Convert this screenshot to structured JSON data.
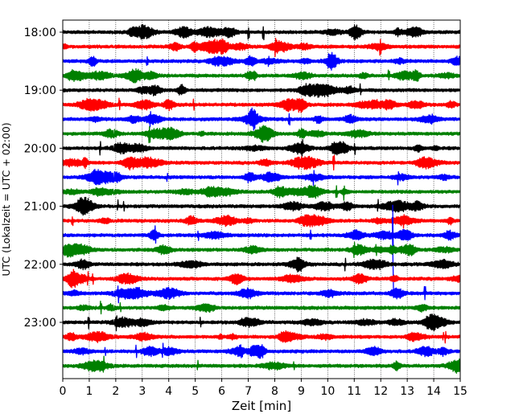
{
  "chart_data": {
    "type": "line",
    "title": "",
    "xlabel": "Zeit  [min]",
    "ylabel": "UTC (Lokalzeit = UTC + 02:00)",
    "xlim": [
      0,
      15
    ],
    "x_ticks": [
      "0",
      "1",
      "2",
      "3",
      "4",
      "5",
      "6",
      "7",
      "8",
      "9",
      "10",
      "11",
      "12",
      "13",
      "14",
      "15"
    ],
    "y_tick_labels": [
      "18:00",
      "19:00",
      "20:00",
      "21:00",
      "22:00",
      "23:00"
    ],
    "grid_x": true,
    "trace_colors": [
      "#000000",
      "#ff0000",
      "#0000ff",
      "#008000"
    ],
    "traces": [
      {
        "start": "18:00"
      },
      {
        "start": "18:15"
      },
      {
        "start": "18:30"
      },
      {
        "start": "18:45"
      },
      {
        "start": "19:00"
      },
      {
        "start": "19:15"
      },
      {
        "start": "19:30"
      },
      {
        "start": "19:45"
      },
      {
        "start": "20:00"
      },
      {
        "start": "20:15"
      },
      {
        "start": "20:30"
      },
      {
        "start": "20:45"
      },
      {
        "start": "21:00"
      },
      {
        "start": "21:15"
      },
      {
        "start": "21:30",
        "event_min": 12.45
      },
      {
        "start": "21:45"
      },
      {
        "start": "22:00"
      },
      {
        "start": "22:15"
      },
      {
        "start": "22:30"
      },
      {
        "start": "22:45"
      },
      {
        "start": "23:00"
      },
      {
        "start": "23:15"
      },
      {
        "start": "23:30"
      },
      {
        "start": "23:45"
      }
    ]
  }
}
